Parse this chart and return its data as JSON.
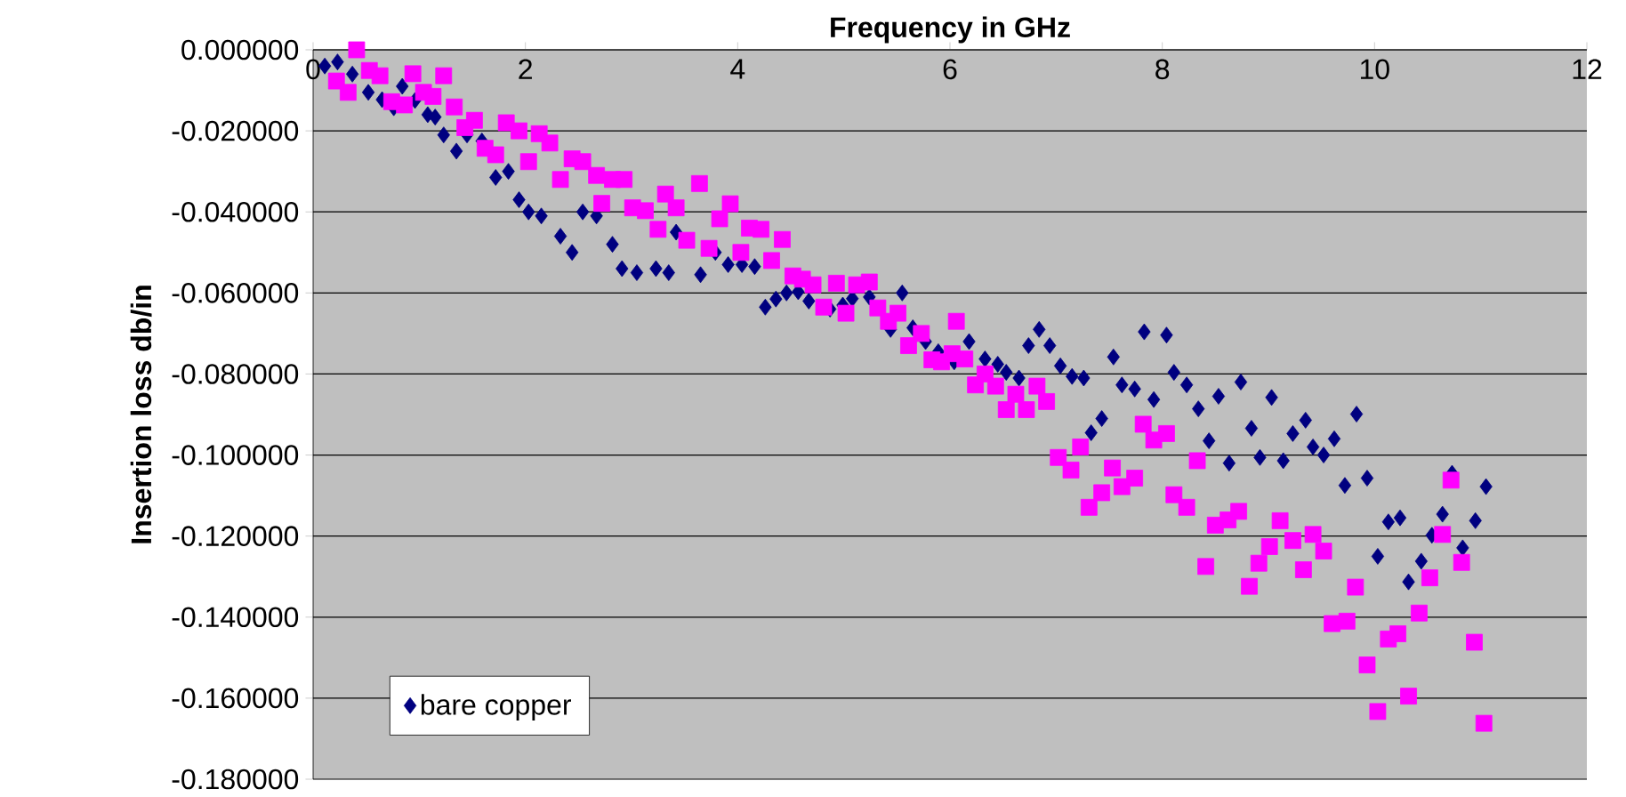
{
  "chart_data": {
    "type": "scatter",
    "xlabel": "Frequency in GHz",
    "ylabel": "Insertion loss db/in",
    "xlim": [
      0,
      12
    ],
    "xticks": [
      0,
      2,
      4,
      6,
      8,
      10,
      12
    ],
    "ylim": [
      -0.18,
      0
    ],
    "yticks": [
      {
        "value": 0,
        "label": "0.000000"
      },
      {
        "value": -0.02,
        "label": "-0.020000"
      },
      {
        "value": -0.04,
        "label": "-0.040000"
      },
      {
        "value": -0.06,
        "label": "-0.060000"
      },
      {
        "value": -0.08,
        "label": "-0.080000"
      },
      {
        "value": -0.1,
        "label": "-0.100000"
      },
      {
        "value": -0.12,
        "label": "-0.120000"
      },
      {
        "value": -0.14,
        "label": "-0.140000"
      },
      {
        "value": -0.16,
        "label": "-0.160000"
      },
      {
        "value": -0.18,
        "label": "-0.180000"
      }
    ],
    "grid": "y",
    "legend": "bottom left",
    "series": [
      {
        "name": "bare copper",
        "color": "#000080",
        "marker": "diamond",
        "x": [
          0.11,
          0.23,
          0.37,
          0.52,
          0.65,
          0.76,
          0.84,
          0.96,
          1.08,
          1.15,
          1.23,
          1.35,
          1.45,
          1.59,
          1.72,
          1.84,
          1.94,
          2.03,
          2.15,
          2.33,
          2.44,
          2.54,
          2.67,
          2.82,
          2.91,
          3.05,
          3.23,
          3.35,
          3.42,
          3.65,
          3.79,
          3.91,
          4.04,
          4.16,
          4.26,
          4.36,
          4.46,
          4.57,
          4.67,
          4.79,
          4.87,
          4.99,
          5.08,
          5.24,
          5.36,
          5.44,
          5.55,
          5.65,
          5.77,
          5.89,
          6.04,
          6.18,
          6.33,
          6.45,
          6.53,
          6.65,
          6.74,
          6.84,
          6.94,
          7.04,
          7.15,
          7.26,
          7.33,
          7.43,
          7.54,
          7.62,
          7.74,
          7.83,
          7.92,
          8.04,
          8.11,
          8.23,
          8.34,
          8.44,
          8.53,
          8.63,
          8.74,
          8.84,
          8.92,
          9.03,
          9.14,
          9.23,
          9.35,
          9.42,
          9.52,
          9.62,
          9.72,
          9.83,
          9.93,
          10.03,
          10.13,
          10.24,
          10.32,
          10.44,
          10.54,
          10.64,
          10.73,
          10.83,
          10.95,
          11.05
        ],
        "values": [
          -0.004,
          -0.003,
          -0.006,
          -0.0105,
          -0.0123,
          -0.0143,
          -0.009,
          -0.0125,
          -0.016,
          -0.0166,
          -0.021,
          -0.025,
          -0.021,
          -0.0225,
          -0.0315,
          -0.03,
          -0.037,
          -0.04,
          -0.041,
          -0.046,
          -0.05,
          -0.04,
          -0.041,
          -0.048,
          -0.054,
          -0.055,
          -0.054,
          -0.055,
          -0.045,
          -0.0555,
          -0.05,
          -0.053,
          -0.053,
          -0.0535,
          -0.0635,
          -0.0615,
          -0.06,
          -0.0597,
          -0.062,
          null,
          -0.064,
          -0.063,
          -0.0614,
          -0.061,
          null,
          -0.069,
          -0.06,
          -0.0686,
          -0.072,
          -0.0745,
          -0.077,
          -0.072,
          -0.0763,
          -0.0776,
          -0.0796,
          -0.081,
          -0.073,
          -0.069,
          -0.073,
          -0.078,
          -0.0806,
          -0.081,
          -0.0945,
          -0.091,
          -0.0758,
          -0.0827,
          -0.0837,
          -0.0696,
          -0.0863,
          -0.0704,
          -0.0796,
          -0.0827,
          -0.0886,
          -0.0965,
          -0.0855,
          -0.102,
          -0.082,
          -0.0934,
          -0.1006,
          -0.0858,
          -0.1014,
          -0.0947,
          -0.0914,
          -0.098,
          -0.1,
          -0.096,
          -0.1075,
          -0.0899,
          -0.1057,
          -0.125,
          -0.1165,
          -0.1155,
          -0.1313,
          -0.1262,
          -0.1198,
          -0.1146,
          -0.1045,
          -0.1229,
          -0.1162,
          -0.1078
        ]
      },
      {
        "color": "#ff00ff",
        "marker": "square",
        "x": [
          0.22,
          0.33,
          0.41,
          0.53,
          0.63,
          0.74,
          0.86,
          0.94,
          1.04,
          1.13,
          1.23,
          1.33,
          1.43,
          1.52,
          1.62,
          1.72,
          1.82,
          1.94,
          2.03,
          2.13,
          2.23,
          2.33,
          2.44,
          2.54,
          2.67,
          2.72,
          2.82,
          2.93,
          3.01,
          3.13,
          3.25,
          3.32,
          3.42,
          3.52,
          3.64,
          3.73,
          3.83,
          3.93,
          4.03,
          4.11,
          4.22,
          4.32,
          4.42,
          4.52,
          4.61,
          4.71,
          4.81,
          4.93,
          5.02,
          5.12,
          5.24,
          5.32,
          5.42,
          5.51,
          5.61,
          5.73,
          5.83,
          5.92,
          6.02,
          6.06,
          6.14,
          6.24,
          6.33,
          6.43,
          6.53,
          6.62,
          6.72,
          6.82,
          6.91,
          7.02,
          7.14,
          7.23,
          7.31,
          7.43,
          7.53,
          7.62,
          7.74,
          7.82,
          7.92,
          8.04,
          8.11,
          8.23,
          8.33,
          8.41,
          8.5,
          8.62,
          8.72,
          8.82,
          8.91,
          9.01,
          9.11,
          9.23,
          9.33,
          9.42,
          9.52,
          9.6,
          9.74,
          9.82,
          9.93,
          10.03,
          10.13,
          10.22,
          10.32,
          10.42,
          10.52,
          10.64,
          10.72,
          10.82,
          10.94,
          11.03
        ],
        "values": [
          -0.0077,
          -0.0105,
          0.0,
          -0.0051,
          -0.0064,
          -0.0128,
          -0.0136,
          -0.0059,
          -0.0105,
          -0.0115,
          -0.0064,
          -0.0141,
          -0.0192,
          -0.0174,
          -0.0243,
          -0.0259,
          -0.018,
          -0.02,
          -0.0276,
          -0.0207,
          -0.023,
          -0.032,
          -0.0269,
          -0.0276,
          -0.031,
          -0.0379,
          -0.032,
          -0.032,
          -0.039,
          -0.0397,
          -0.0443,
          -0.0356,
          -0.039,
          -0.047,
          -0.033,
          -0.049,
          -0.0417,
          -0.038,
          -0.05,
          -0.044,
          -0.0443,
          -0.052,
          -0.0468,
          -0.0558,
          -0.0566,
          -0.058,
          -0.0635,
          -0.0576,
          -0.065,
          -0.058,
          -0.0573,
          -0.0637,
          -0.067,
          -0.065,
          -0.073,
          -0.07,
          -0.0765,
          -0.077,
          -0.075,
          -0.067,
          -0.0763,
          -0.0827,
          -0.08,
          -0.083,
          -0.0888,
          -0.085,
          -0.0888,
          -0.083,
          -0.0868,
          -0.1006,
          -0.1037,
          -0.098,
          -0.1129,
          -0.1093,
          -0.1032,
          -0.1078,
          -0.1057,
          -0.0924,
          -0.0963,
          -0.0947,
          -0.1098,
          -0.1129,
          -0.1014,
          -0.1275,
          -0.1173,
          -0.116,
          -0.1139,
          -0.1324,
          -0.1267,
          -0.1226,
          -0.1162,
          -0.1211,
          -0.1283,
          -0.1196,
          -0.1237,
          -0.1416,
          -0.141,
          -0.1326,
          -0.1518,
          -0.1633,
          -0.1454,
          -0.1441,
          -0.1595,
          -0.139,
          -0.1303,
          -0.1196,
          -0.1062,
          -0.1265,
          -0.1462,
          -0.1662
        ]
      }
    ]
  }
}
